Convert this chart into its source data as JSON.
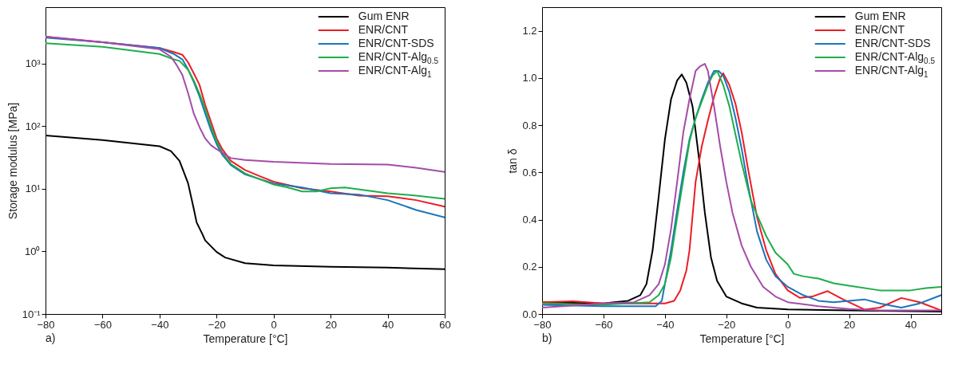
{
  "chart_data": [
    {
      "type": "line",
      "xlabel": "Temperature [°C]",
      "ylabel": "Storage modulus [MPa]",
      "log": "y",
      "legend": "top right",
      "grid": false,
      "annotations": [
        "a)"
      ],
      "xlim": [
        -80,
        60
      ],
      "xticks": [
        -80,
        -60,
        -40,
        -20,
        0,
        20,
        40,
        60
      ],
      "ylim": [
        0.1,
        8000
      ],
      "yticks": [
        {
          "value": 0.1,
          "label": "10⁻¹"
        },
        {
          "value": 1,
          "label": "10⁰"
        },
        {
          "value": 10,
          "label": "10¹"
        },
        {
          "value": 100,
          "label": "10²"
        },
        {
          "value": 1000,
          "label": "10³"
        }
      ],
      "series": [
        {
          "name": "Gum ENR",
          "color": "#000000",
          "x": [
            -80,
            -60,
            -40,
            -36,
            -33,
            -30,
            -28,
            -27,
            -25,
            -24,
            -20,
            -17,
            -10,
            0,
            20,
            40,
            60
          ],
          "values": [
            71,
            60,
            48,
            40,
            28,
            12.3,
            4.8,
            2.9,
            1.9,
            1.5,
            0.98,
            0.8,
            0.65,
            0.6,
            0.57,
            0.55,
            0.52
          ]
        },
        {
          "name": "ENR/CNT",
          "color": "#ed1c24",
          "x": [
            -80,
            -60,
            -40,
            -35,
            -32,
            -30,
            -28,
            -26,
            -24,
            -22,
            -20,
            -18,
            -15,
            -10,
            -5,
            0,
            10,
            20,
            30,
            40,
            50,
            60
          ],
          "values": [
            2700,
            2200,
            1780,
            1540,
            1390,
            1050,
            700,
            460,
            220,
            120,
            64,
            43,
            28,
            20,
            16,
            13,
            10.2,
            9.1,
            7.8,
            7.6,
            6.6,
            5.2
          ]
        },
        {
          "name": "ENR/CNT-SDS",
          "color": "#1b75bc",
          "x": [
            -80,
            -60,
            -40,
            -35,
            -32,
            -30,
            -28,
            -26,
            -24,
            -22,
            -20,
            -18,
            -15,
            -10,
            0,
            10,
            20,
            30,
            40,
            50,
            60
          ],
          "values": [
            2600,
            2200,
            1780,
            1430,
            1170,
            810,
            510,
            300,
            160,
            87,
            52,
            35,
            24,
            17,
            12.2,
            10.5,
            8.5,
            8.1,
            6.6,
            4.6,
            3.5
          ]
        },
        {
          "name": "ENR/CNT-Alg$_{0.5}$",
          "color": "#1fad4b",
          "x": [
            -80,
            -60,
            -40,
            -35,
            -33,
            -30,
            -28,
            -26,
            -24,
            -22,
            -20,
            -18,
            -15,
            -10,
            0,
            5,
            10,
            15,
            20,
            25,
            40,
            50,
            60
          ],
          "values": [
            2130,
            1860,
            1430,
            1170,
            1110,
            800,
            540,
            330,
            190,
            100,
            58,
            38,
            25,
            17.6,
            11.7,
            10.5,
            9.1,
            9.1,
            10.2,
            10.5,
            8.5,
            7.8,
            6.9
          ]
        },
        {
          "name": "ENR/CNT-Alg$_{1}$",
          "color": "#a54ca7",
          "x": [
            -80,
            -60,
            -40,
            -36,
            -34,
            -32,
            -30,
            -28,
            -26,
            -24,
            -22,
            -20,
            -15,
            -10,
            0,
            20,
            40,
            50,
            60
          ],
          "values": [
            2700,
            2200,
            1700,
            1290,
            950,
            660,
            340,
            160,
            97,
            64,
            50,
            43,
            31,
            29,
            27,
            25,
            24.5,
            21.7,
            18.6
          ]
        }
      ]
    },
    {
      "type": "line",
      "xlabel": "Temperature [°C]",
      "ylabel": "tan δ",
      "legend": "top right",
      "grid": false,
      "annotations": [
        "b)"
      ],
      "xlim": [
        -80,
        50
      ],
      "xticks": [
        -80,
        -60,
        -40,
        -20,
        0,
        20,
        40
      ],
      "ylim": [
        0,
        1.3
      ],
      "yticks": [
        {
          "value": 0,
          "label": "0.0"
        },
        0.2,
        0.4,
        0.6,
        0.8,
        {
          "value": 1,
          "label": "1.0"
        },
        1.2
      ],
      "series": [
        {
          "name": "Gum ENR",
          "color": "#000000",
          "x": [
            -80,
            -60,
            -52,
            -48,
            -46,
            -44,
            -42,
            -40,
            -38,
            -36,
            -34.5,
            -33,
            -31,
            -29,
            -27,
            -25,
            -23,
            -20,
            -15,
            -10,
            0,
            20,
            50
          ],
          "values": [
            0.05,
            0.045,
            0.056,
            0.08,
            0.127,
            0.27,
            0.5,
            0.74,
            0.91,
            0.99,
            1.015,
            0.98,
            0.88,
            0.67,
            0.43,
            0.24,
            0.14,
            0.074,
            0.045,
            0.027,
            0.019,
            0.015,
            0.01
          ]
        },
        {
          "name": "ENR/CNT",
          "color": "#ed1c24",
          "x": [
            -80,
            -70,
            -60,
            -40,
            -37,
            -35,
            -33,
            -32,
            -30,
            -28,
            -26,
            -24,
            -22,
            -21,
            -19,
            -17,
            -15,
            -13,
            -10,
            -7,
            -4,
            0,
            4,
            8,
            13,
            18,
            25,
            30,
            37,
            43,
            50
          ],
          "values": [
            0.05,
            0.054,
            0.045,
            0.045,
            0.056,
            0.1,
            0.185,
            0.27,
            0.56,
            0.71,
            0.82,
            0.92,
            1.0,
            1.02,
            0.97,
            0.89,
            0.77,
            0.62,
            0.41,
            0.27,
            0.17,
            0.1,
            0.068,
            0.074,
            0.097,
            0.062,
            0.019,
            0.027,
            0.068,
            0.05,
            0.015
          ]
        },
        {
          "name": "ENR/CNT-SDS",
          "color": "#1b75bc",
          "x": [
            -80,
            -60,
            -43,
            -41,
            -38,
            -36,
            -34,
            -32,
            -30,
            -28,
            -26,
            -24,
            -22.5,
            -21,
            -19,
            -17,
            -15,
            -13,
            -10,
            -7,
            -4,
            0,
            5,
            10,
            15,
            20,
            25,
            30,
            37,
            43,
            50
          ],
          "values": [
            0.039,
            0.033,
            0.033,
            0.056,
            0.27,
            0.44,
            0.6,
            0.74,
            0.83,
            0.91,
            0.98,
            1.03,
            1.03,
            1.01,
            0.94,
            0.83,
            0.7,
            0.55,
            0.35,
            0.23,
            0.16,
            0.115,
            0.08,
            0.056,
            0.05,
            0.056,
            0.062,
            0.045,
            0.027,
            0.045,
            0.08
          ]
        },
        {
          "name": "ENR/CNT-Alg$_{0.5}$",
          "color": "#1fad4b",
          "x": [
            -80,
            -60,
            -45,
            -42,
            -40,
            -38,
            -36,
            -34,
            -32,
            -30,
            -28,
            -26,
            -24.5,
            -23,
            -21,
            -19,
            -17,
            -15,
            -12,
            -10,
            -7,
            -4,
            0,
            2,
            5,
            10,
            15,
            20,
            30,
            40,
            45,
            50
          ],
          "values": [
            0.045,
            0.039,
            0.05,
            0.08,
            0.127,
            0.24,
            0.41,
            0.57,
            0.73,
            0.83,
            0.9,
            0.97,
            1.01,
            1.03,
            0.97,
            0.88,
            0.76,
            0.64,
            0.48,
            0.42,
            0.33,
            0.26,
            0.21,
            0.17,
            0.16,
            0.15,
            0.13,
            0.12,
            0.1,
            0.1,
            0.11,
            0.115
          ]
        },
        {
          "name": "ENR/CNT-Alg$_{1}$",
          "color": "#a54ca7",
          "x": [
            -80,
            -60,
            -50,
            -45,
            -42,
            -40,
            -38,
            -36,
            -34,
            -32,
            -30,
            -28.5,
            -27,
            -26,
            -24,
            -22,
            -20,
            -18,
            -15,
            -12,
            -8,
            -4,
            0,
            10,
            20,
            30,
            50
          ],
          "values": [
            0.027,
            0.045,
            0.05,
            0.08,
            0.127,
            0.21,
            0.36,
            0.56,
            0.77,
            0.91,
            1.03,
            1.05,
            1.06,
            1.03,
            0.88,
            0.71,
            0.56,
            0.43,
            0.29,
            0.2,
            0.115,
            0.074,
            0.05,
            0.033,
            0.021,
            0.015,
            0.015
          ]
        }
      ]
    }
  ]
}
